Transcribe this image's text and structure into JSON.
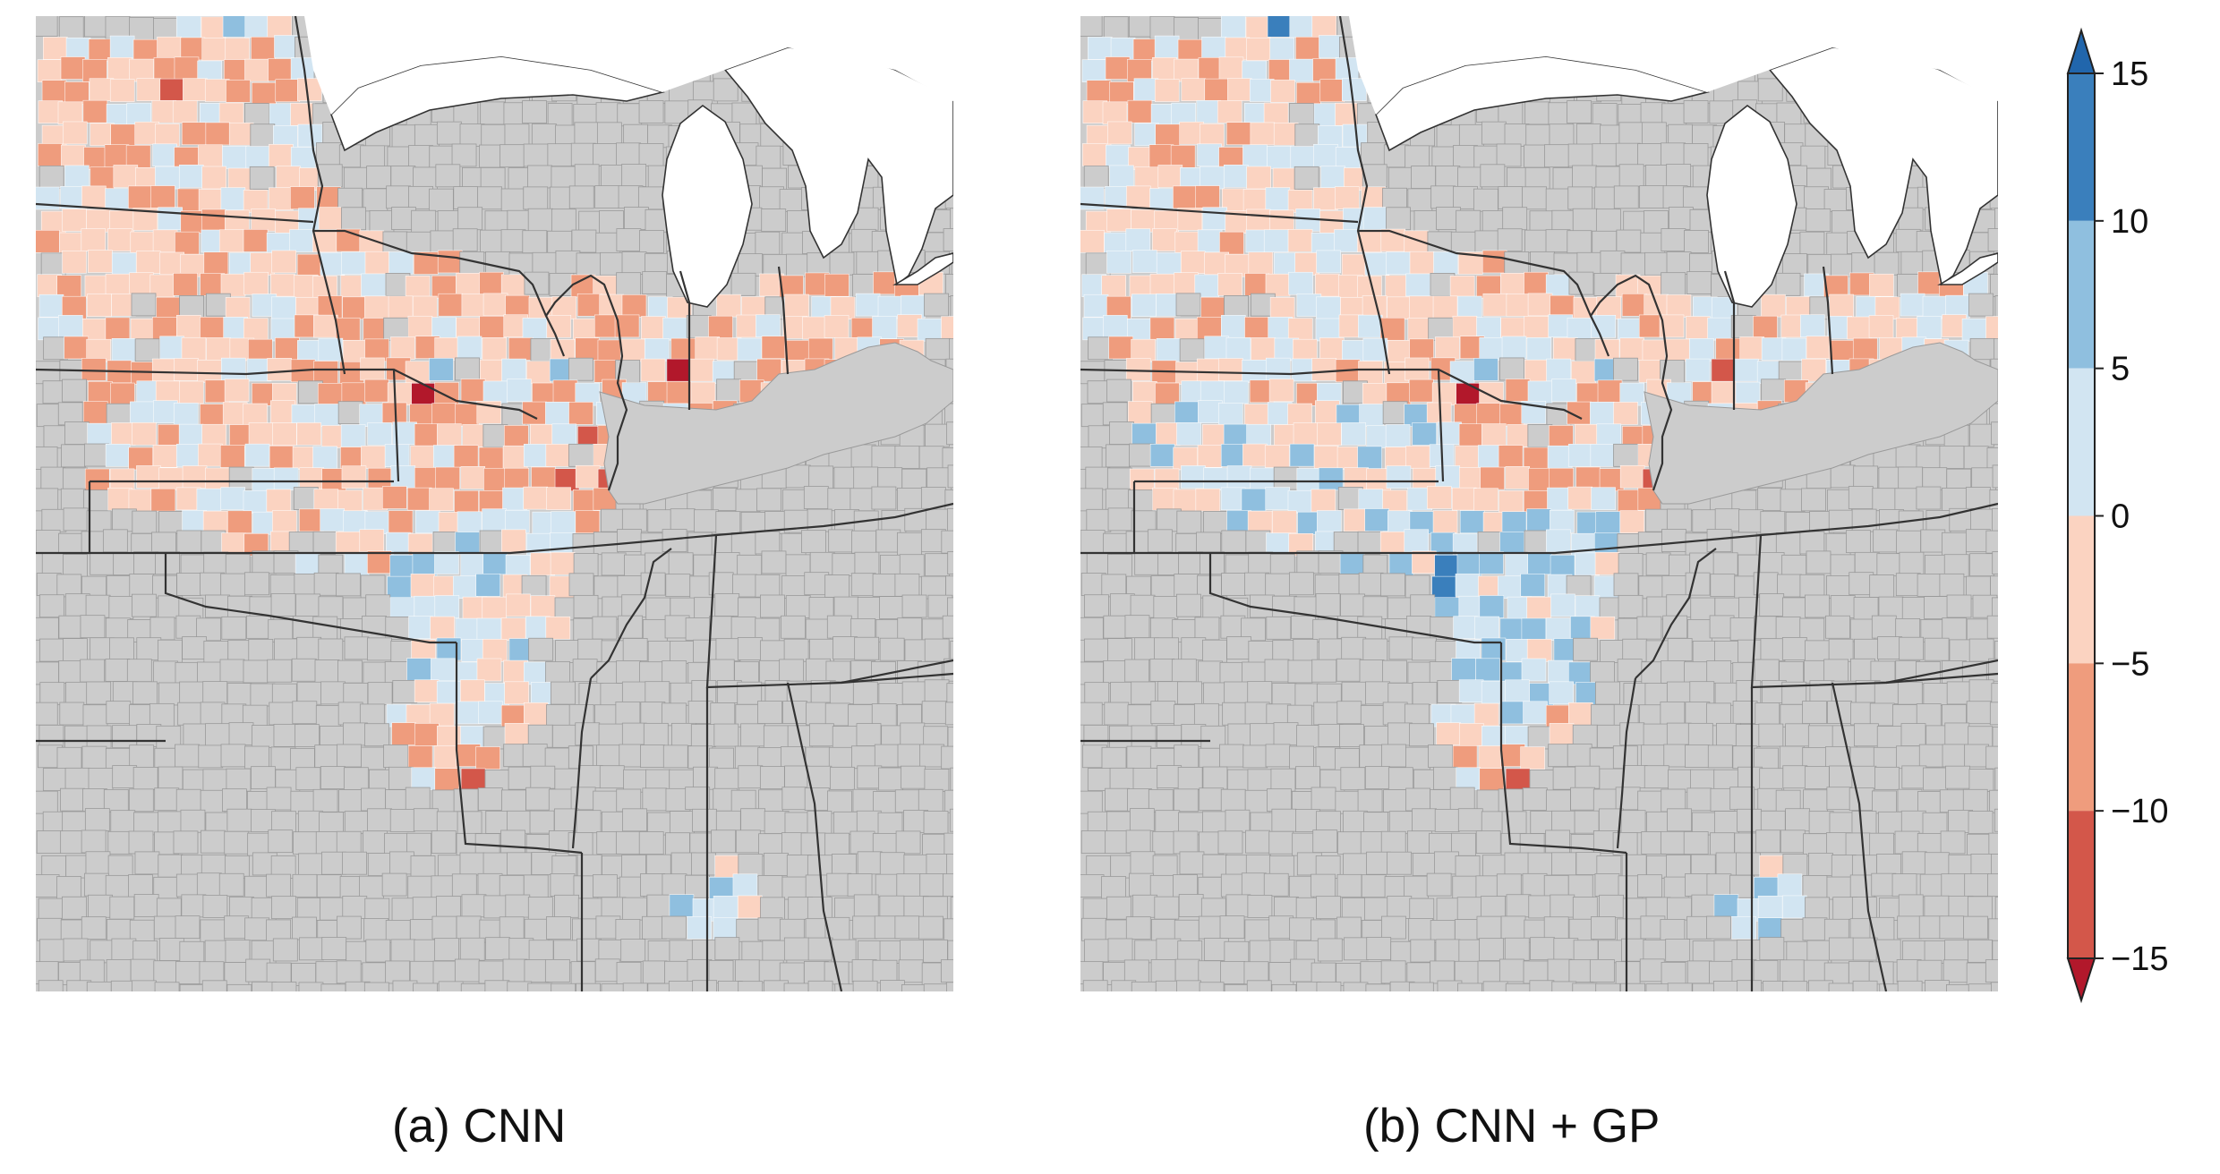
{
  "panels": [
    {
      "id": "a",
      "caption": "(a) CNN"
    },
    {
      "id": "b",
      "caption": "(b) CNN + GP"
    }
  ],
  "colorbar": {
    "min": -15,
    "max": 15,
    "extend": "both",
    "levels": [
      -15,
      -10,
      -5,
      0,
      5,
      10,
      15
    ],
    "tick_labels": [
      "15",
      "10",
      "5",
      "0",
      "−5",
      "−10",
      "−15"
    ],
    "bins": [
      {
        "from": 10,
        "to": 15,
        "color": "#3a7fbc"
      },
      {
        "from": 5,
        "to": 10,
        "color": "#8fbfdf"
      },
      {
        "from": 0,
        "to": 5,
        "color": "#d2e5f2"
      },
      {
        "from": -5,
        "to": 0,
        "color": "#fbd3c1"
      },
      {
        "from": -10,
        "to": -5,
        "color": "#ef9c7d"
      },
      {
        "from": -15,
        "to": -10,
        "color": "#d3574a"
      }
    ],
    "over_color": "#2166ac",
    "under_color": "#b2182b"
  },
  "colors": {
    "no_data": "#cccccc",
    "county_border": "#9a9a9a",
    "state_border": "#333333",
    "water": "#ffffff"
  }
}
